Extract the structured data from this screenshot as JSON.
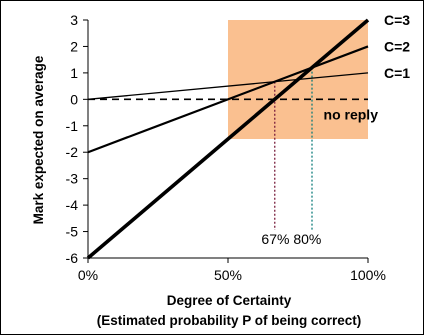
{
  "chart_data": {
    "type": "line",
    "ylabel": "Mark expected on average",
    "xlabel": "Degree of Certainty",
    "xlabel2": "(Estimated probability P of being correct)",
    "xlim": [
      0,
      1
    ],
    "ylim": [
      -6,
      3
    ],
    "x_ticks": [
      0,
      0.5,
      1
    ],
    "x_tick_labels": [
      "0%",
      "50%",
      "100%"
    ],
    "y_ticks": [
      3,
      2,
      1,
      0,
      -1,
      -2,
      -3,
      -4,
      -5,
      -6
    ],
    "y_tick_labels": [
      "3",
      "2",
      "1",
      "0",
      "-1",
      "-2",
      "-3",
      "-4",
      "-5",
      "-6"
    ],
    "grid": false,
    "highlight_region": {
      "x": [
        0.5,
        1
      ],
      "y": [
        -1.5,
        3
      ],
      "color": "#fac090"
    },
    "series": [
      {
        "name": "C=1",
        "x": [
          0,
          1
        ],
        "values": [
          0,
          1
        ],
        "width": 1.3
      },
      {
        "name": "C=2",
        "x": [
          0,
          1
        ],
        "values": [
          -2,
          2
        ],
        "width": 2.2
      },
      {
        "name": "C=3",
        "x": [
          0,
          1
        ],
        "values": [
          -6,
          3
        ],
        "width": 3.6
      }
    ],
    "reference_lines": [
      {
        "label": "no reply",
        "y": 0,
        "style": "dashed"
      }
    ],
    "markers": [
      {
        "label": "67%",
        "x": 0.667,
        "y": 0.667,
        "color": "#7a1f3d"
      },
      {
        "label": "80%",
        "x": 0.8,
        "y": 1.2,
        "color": "#0e7c7b"
      }
    ]
  }
}
